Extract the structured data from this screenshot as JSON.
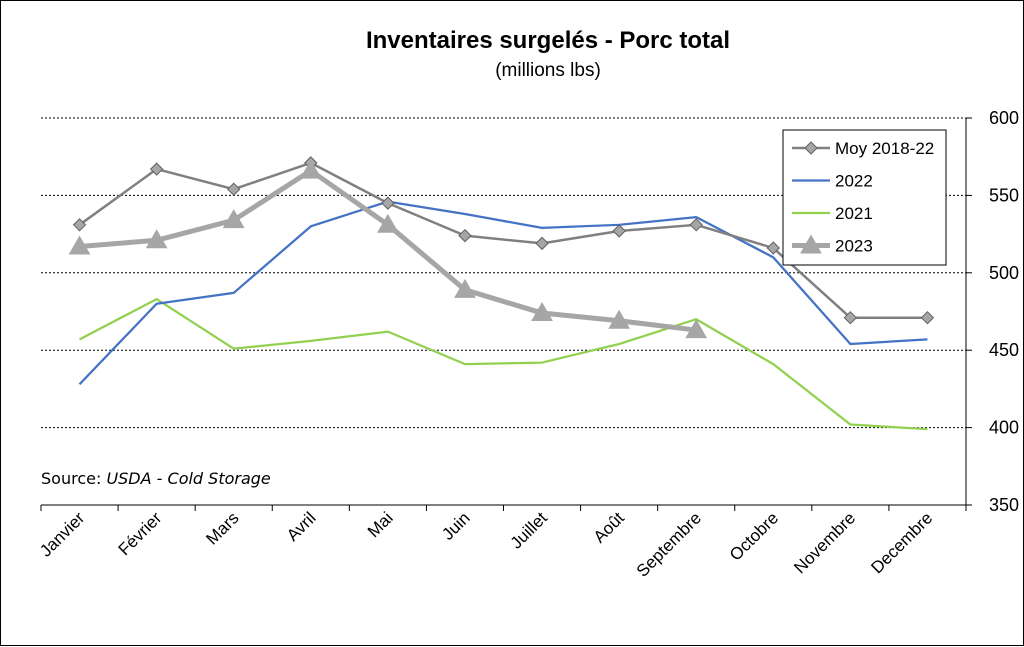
{
  "chart_data": {
    "type": "line",
    "title": "Inventaires surgelés - Porc total",
    "subtitle": "(millions lbs)",
    "categories": [
      "Janvier",
      "Février",
      "Mars",
      "Avril",
      "Mai",
      "Juin",
      "Juillet",
      "Août",
      "Septembre",
      "Octobre",
      "Novembre",
      "Decembre"
    ],
    "ylim": [
      350,
      600
    ],
    "yticks": [
      350,
      400,
      450,
      500,
      550,
      600
    ],
    "y_axis_side": "right",
    "grid": "horizontal dotted",
    "legend_position": "top-right",
    "source_prefix": "Source: ",
    "source_name": "USDA - Cold Storage",
    "series": [
      {
        "name": "Moy 2018-22",
        "color": "#808080",
        "marker": "diamond",
        "values": [
          531,
          567,
          554,
          571,
          545,
          524,
          519,
          527,
          531,
          516,
          471,
          471
        ]
      },
      {
        "name": "2022",
        "color": "#4472C4",
        "marker": "none",
        "values": [
          428,
          480,
          487,
          530,
          546,
          538,
          529,
          531,
          536,
          510,
          454,
          457
        ]
      },
      {
        "name": "2021",
        "color": "#92D050",
        "marker": "none",
        "values": [
          457,
          483,
          451,
          456,
          462,
          441,
          442,
          454,
          470,
          441,
          402,
          399
        ]
      },
      {
        "name": "2023",
        "color": "#A6A6A6",
        "marker": "triangle",
        "values": [
          517,
          521,
          534,
          566,
          531,
          489,
          474,
          469,
          463,
          null,
          null,
          null
        ]
      }
    ]
  }
}
